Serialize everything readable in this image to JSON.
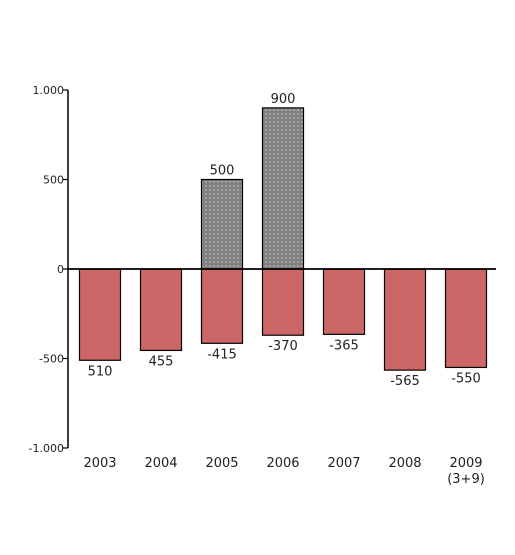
{
  "chart_data": {
    "type": "bar",
    "categories": [
      "2003",
      "2004",
      "2005",
      "2006",
      "2007",
      "2008",
      "2009\n(3+9)"
    ],
    "series": [
      {
        "values": [
          0,
          0,
          500,
          900,
          0,
          0,
          0
        ],
        "labels": [
          "",
          "",
          "500",
          "900",
          "",
          "",
          ""
        ],
        "color": "#808080"
      },
      {
        "values": [
          -510,
          -455,
          -415,
          -370,
          -365,
          -565,
          -550
        ],
        "labels": [
          "510",
          "455",
          "-415",
          "-370",
          "-365",
          "-565",
          "-550"
        ],
        "color": "#cd6666"
      }
    ],
    "yticks": [
      1000,
      500,
      0,
      -500,
      -1000
    ],
    "ytick_labels": [
      "1.000",
      "500",
      "0",
      "-500",
      "-1.000"
    ],
    "ylim": [
      -1000,
      1000
    ],
    "grid": false,
    "legend": "none",
    "colors": {
      "positive": "#808080",
      "negative": "#cd6666",
      "axis": "#000000"
    }
  }
}
